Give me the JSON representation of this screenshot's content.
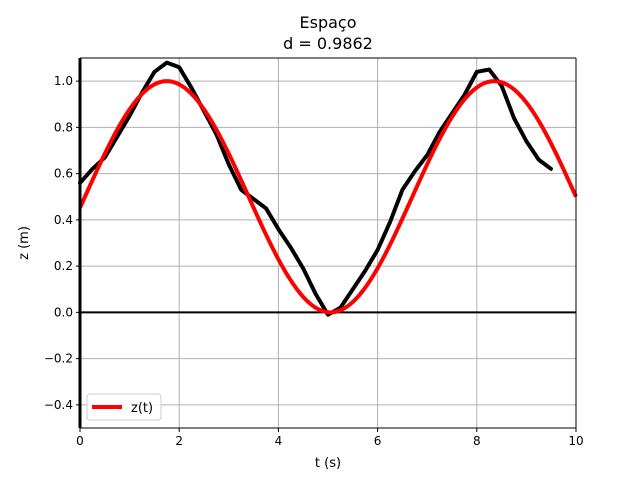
{
  "chart_data": {
    "type": "line",
    "title": "Espaço",
    "subtitle": "d = 0.9862",
    "xlabel": "t (s)",
    "ylabel": "z (m)",
    "xlim": [
      0,
      10
    ],
    "ylim": [
      -0.5,
      1.1
    ],
    "xticks": [
      0,
      2,
      4,
      6,
      8,
      10
    ],
    "xtick_labels": [
      "0",
      "2",
      "4",
      "6",
      "8",
      "10"
    ],
    "yticks": [
      -0.4,
      -0.2,
      0.0,
      0.2,
      0.4,
      0.6,
      0.8,
      1.0
    ],
    "ytick_labels": [
      "−0.4",
      "−0.2",
      "0.0",
      "0.2",
      "0.4",
      "0.6",
      "0.8",
      "1.0"
    ],
    "grid": true,
    "legend_position": "lower-left",
    "series": [
      {
        "name": "z(t)",
        "color": "#ff0000",
        "style": "line",
        "function": "0.5 + 0.5*sin(2*pi*(t-0.1)/6.6)",
        "x": [
          0,
          0.25,
          0.5,
          0.75,
          1,
          1.25,
          1.5,
          1.75,
          2,
          2.25,
          2.5,
          2.75,
          3,
          3.25,
          3.5,
          3.75,
          4,
          4.25,
          4.5,
          4.75,
          5,
          5.25,
          5.5,
          5.75,
          6,
          6.25,
          6.5,
          6.75,
          7,
          7.25,
          7.5,
          7.75,
          8,
          8.25,
          8.5,
          8.75,
          9,
          9.25,
          9.5,
          9.75,
          10
        ],
        "y": [
          0.5,
          0.62,
          0.73,
          0.83,
          0.91,
          0.97,
          1.0,
          1.0,
          0.98,
          0.93,
          0.86,
          0.77,
          0.66,
          0.54,
          0.42,
          0.31,
          0.2,
          0.11,
          0.05,
          0.01,
          0.0,
          0.02,
          0.06,
          0.13,
          0.22,
          0.32,
          0.44,
          0.56,
          0.67,
          0.77,
          0.86,
          0.93,
          0.98,
          1.0,
          0.99,
          0.96,
          0.9,
          0.82,
          0.72,
          0.61,
          0.5
        ]
      },
      {
        "name": "",
        "color": "#000000",
        "style": "dotted-thick",
        "x": [
          0,
          0.25,
          0.5,
          0.75,
          1,
          1.25,
          1.5,
          1.75,
          2,
          2.25,
          2.5,
          2.75,
          3,
          3.25,
          3.5,
          3.75,
          4,
          4.25,
          4.5,
          4.75,
          5,
          5.25,
          5.5,
          5.75,
          6,
          6.25,
          6.5,
          6.75,
          7,
          7.25,
          7.5,
          7.75,
          8,
          8.25,
          8.5,
          8.75,
          9,
          9.25,
          9.5
        ],
        "y": [
          0.56,
          0.62,
          0.67,
          0.76,
          0.85,
          0.95,
          1.04,
          1.08,
          1.06,
          0.97,
          0.87,
          0.77,
          0.64,
          0.53,
          0.49,
          0.45,
          0.36,
          0.28,
          0.19,
          0.08,
          -0.01,
          0.02,
          0.1,
          0.18,
          0.27,
          0.39,
          0.53,
          0.61,
          0.68,
          0.78,
          0.86,
          0.94,
          1.04,
          1.05,
          0.98,
          0.84,
          0.74,
          0.66,
          0.62
        ]
      }
    ],
    "hlines": [
      {
        "y": 0,
        "color": "#000000"
      }
    ]
  }
}
